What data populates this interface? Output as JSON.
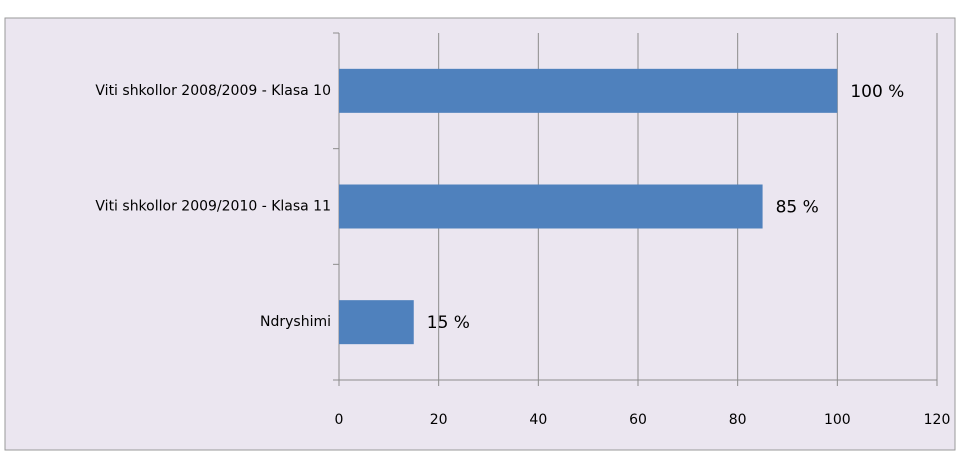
{
  "chart_data": {
    "type": "hbar",
    "categories": [
      "Viti shkollor 2008/2009 - Klasa 10",
      "Viti shkollor 2009/2010 - Klasa 11",
      "Ndryshimi"
    ],
    "values": [
      100,
      85,
      15
    ],
    "value_labels": [
      "100 %",
      "85 %",
      "15 %"
    ],
    "color": "#4f81bd",
    "xlim": [
      0,
      120
    ],
    "xticks": [
      0,
      20,
      40,
      60,
      80,
      100,
      120
    ],
    "grid": true
  }
}
